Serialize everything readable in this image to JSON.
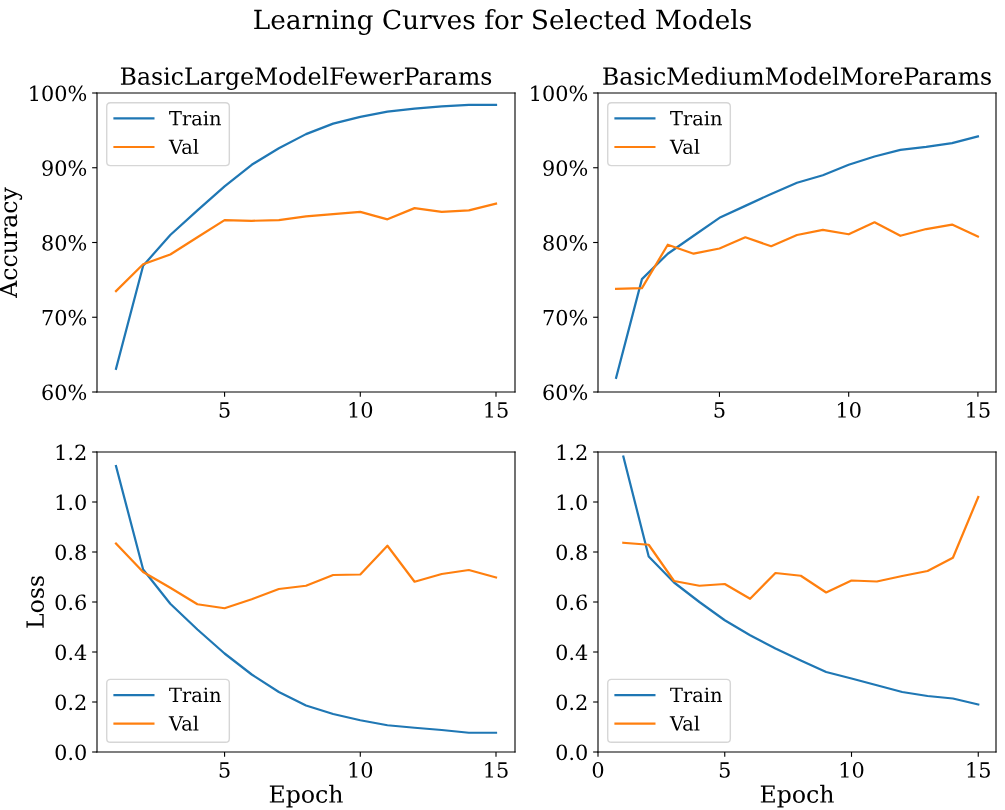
{
  "chart_data": [
    {
      "type": "line",
      "title": "BasicLargeModelFewerParams",
      "annotations": [
        "Learning Curves for Selected Models"
      ],
      "ylabel": "Accuracy",
      "x": [
        1,
        2,
        3,
        4,
        5,
        6,
        7,
        8,
        9,
        10,
        11,
        12,
        13,
        14,
        15
      ],
      "xlim": [
        0.3,
        15.7
      ],
      "xticks": [
        5,
        10,
        15
      ],
      "ylim": [
        60,
        100
      ],
      "yticks": [
        {
          "value": 60,
          "label": "60%"
        },
        {
          "value": 70,
          "label": "70%"
        },
        {
          "value": 80,
          "label": "80%"
        },
        {
          "value": 90,
          "label": "90%"
        },
        {
          "value": 100,
          "label": "100%"
        }
      ],
      "grid": false,
      "legend": "top left",
      "series": [
        {
          "name": "Train",
          "color": "#1f77b4",
          "values": [
            63.1,
            76.9,
            81.0,
            84.3,
            87.5,
            90.4,
            92.6,
            94.5,
            95.9,
            96.8,
            97.5,
            97.9,
            98.2,
            98.4,
            98.4
          ]
        },
        {
          "name": "Val",
          "color": "#ff7f0e",
          "values": [
            73.5,
            77.1,
            78.4,
            80.7,
            83.0,
            82.9,
            83.0,
            83.5,
            83.8,
            84.1,
            83.1,
            84.6,
            84.1,
            84.3,
            85.2
          ]
        }
      ]
    },
    {
      "type": "line",
      "title": "BasicMediumModelMoreParams",
      "x": [
        1,
        2,
        3,
        4,
        5,
        6,
        7,
        8,
        9,
        10,
        11,
        12,
        13,
        14,
        15
      ],
      "xlim": [
        0.3,
        15.7
      ],
      "xticks": [
        5,
        10,
        15
      ],
      "ylim": [
        60,
        100
      ],
      "yticks": [
        {
          "value": 60,
          "label": "60%"
        },
        {
          "value": 70,
          "label": "70%"
        },
        {
          "value": 80,
          "label": "80%"
        },
        {
          "value": 90,
          "label": "90%"
        },
        {
          "value": 100,
          "label": "100%"
        }
      ],
      "grid": false,
      "legend": "top left",
      "series": [
        {
          "name": "Train",
          "color": "#1f77b4",
          "values": [
            61.9,
            75.1,
            78.5,
            80.9,
            83.3,
            84.9,
            86.5,
            88.0,
            89.0,
            90.4,
            91.5,
            92.4,
            92.8,
            93.3,
            94.2
          ]
        },
        {
          "name": "Val",
          "color": "#ff7f0e",
          "values": [
            73.8,
            73.9,
            79.7,
            78.5,
            79.2,
            80.7,
            79.5,
            81.0,
            81.7,
            81.1,
            82.7,
            80.9,
            81.8,
            82.4,
            80.8
          ]
        }
      ]
    },
    {
      "type": "line",
      "ylabel": "Loss",
      "xlabel": "Epoch",
      "x": [
        1,
        2,
        3,
        4,
        5,
        6,
        7,
        8,
        9,
        10,
        11,
        12,
        13,
        14,
        15
      ],
      "xlim": [
        0.3,
        15.7
      ],
      "xticks": [
        5,
        10,
        15
      ],
      "ylim": [
        0,
        1.2
      ],
      "yticks": [
        {
          "value": 0,
          "label": "0.0"
        },
        {
          "value": 0.2,
          "label": "0.2"
        },
        {
          "value": 0.4,
          "label": "0.4"
        },
        {
          "value": 0.6,
          "label": "0.6"
        },
        {
          "value": 0.8,
          "label": "0.8"
        },
        {
          "value": 1.0,
          "label": "1.0"
        },
        {
          "value": 1.2,
          "label": "1.2"
        }
      ],
      "grid": false,
      "legend": "bottom left",
      "series": [
        {
          "name": "Train",
          "color": "#1f77b4",
          "values": [
            1.144,
            0.73,
            0.593,
            0.49,
            0.394,
            0.31,
            0.24,
            0.186,
            0.152,
            0.127,
            0.107,
            0.097,
            0.088,
            0.077,
            0.077
          ]
        },
        {
          "name": "Val",
          "color": "#ff7f0e",
          "values": [
            0.834,
            0.72,
            0.657,
            0.591,
            0.575,
            0.611,
            0.652,
            0.665,
            0.708,
            0.71,
            0.825,
            0.681,
            0.712,
            0.728,
            0.698
          ]
        }
      ]
    },
    {
      "type": "line",
      "xlabel": "Epoch",
      "x": [
        1,
        2,
        3,
        4,
        5,
        6,
        7,
        8,
        9,
        10,
        11,
        12,
        13,
        14,
        15
      ],
      "xlim": [
        0,
        15.7
      ],
      "xticks": [
        0,
        5,
        10,
        15
      ],
      "ylim": [
        0,
        1.2
      ],
      "yticks": [
        {
          "value": 0,
          "label": "0.0"
        },
        {
          "value": 0.2,
          "label": "0.2"
        },
        {
          "value": 0.4,
          "label": "0.4"
        },
        {
          "value": 0.6,
          "label": "0.6"
        },
        {
          "value": 0.8,
          "label": "0.8"
        },
        {
          "value": 1.0,
          "label": "1.0"
        },
        {
          "value": 1.2,
          "label": "1.2"
        }
      ],
      "grid": false,
      "legend": "bottom left",
      "series": [
        {
          "name": "Train",
          "color": "#1f77b4",
          "values": [
            1.182,
            0.782,
            0.678,
            0.6,
            0.527,
            0.467,
            0.414,
            0.366,
            0.32,
            0.294,
            0.267,
            0.24,
            0.224,
            0.214,
            0.19
          ]
        },
        {
          "name": "Val",
          "color": "#ff7f0e",
          "values": [
            0.837,
            0.829,
            0.684,
            0.665,
            0.672,
            0.613,
            0.716,
            0.705,
            0.638,
            0.686,
            0.682,
            0.704,
            0.724,
            0.777,
            1.02
          ]
        }
      ]
    }
  ]
}
